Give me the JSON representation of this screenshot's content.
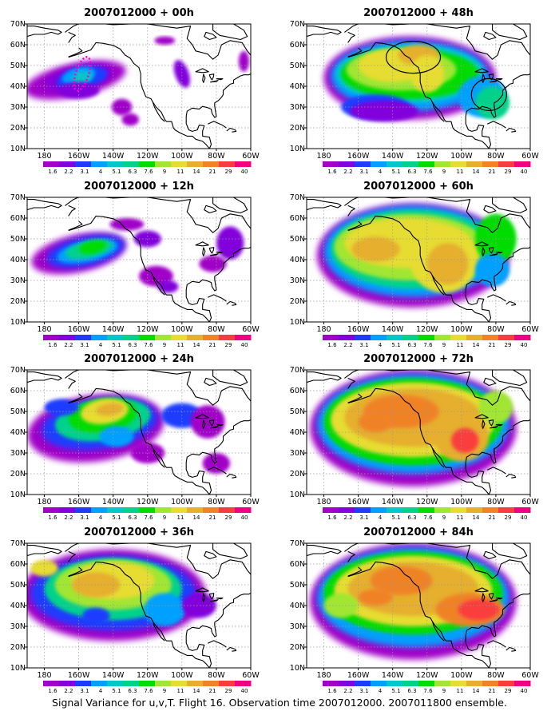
{
  "figure": {
    "caption": "Signal Variance for u,v,T. Flight 16. Observation time 2007012000. 2007011800 ensemble.",
    "xticks": [
      "180",
      "160W",
      "140W",
      "120W",
      "100W",
      "80W",
      "60W"
    ],
    "yticks": [
      "10N",
      "20N",
      "30N",
      "40N",
      "50N",
      "60N",
      "70N"
    ],
    "colorbar_labels": [
      "1.6",
      "2.2",
      "3.1",
      "4",
      "5.1",
      "6.3",
      "7.6",
      "9",
      "11",
      "14",
      "21",
      "29",
      "40"
    ],
    "colorbar_colors": [
      "#a000c8",
      "#8200dc",
      "#1e3cff",
      "#00a0ff",
      "#00c8c8",
      "#00d28c",
      "#00dc00",
      "#a0e632",
      "#e6dc32",
      "#e6af2d",
      "#f08228",
      "#fa3c3c",
      "#f00082"
    ],
    "panels": [
      {
        "title": "2007012000 + 00h"
      },
      {
        "title": "2007012000 + 48h"
      },
      {
        "title": "2007012000 + 12h"
      },
      {
        "title": "2007012000 + 60h"
      },
      {
        "title": "2007012000 + 24h"
      },
      {
        "title": "2007012000 + 72h"
      },
      {
        "title": "2007012000 + 36h"
      },
      {
        "title": "2007012000 + 84h"
      }
    ]
  }
}
